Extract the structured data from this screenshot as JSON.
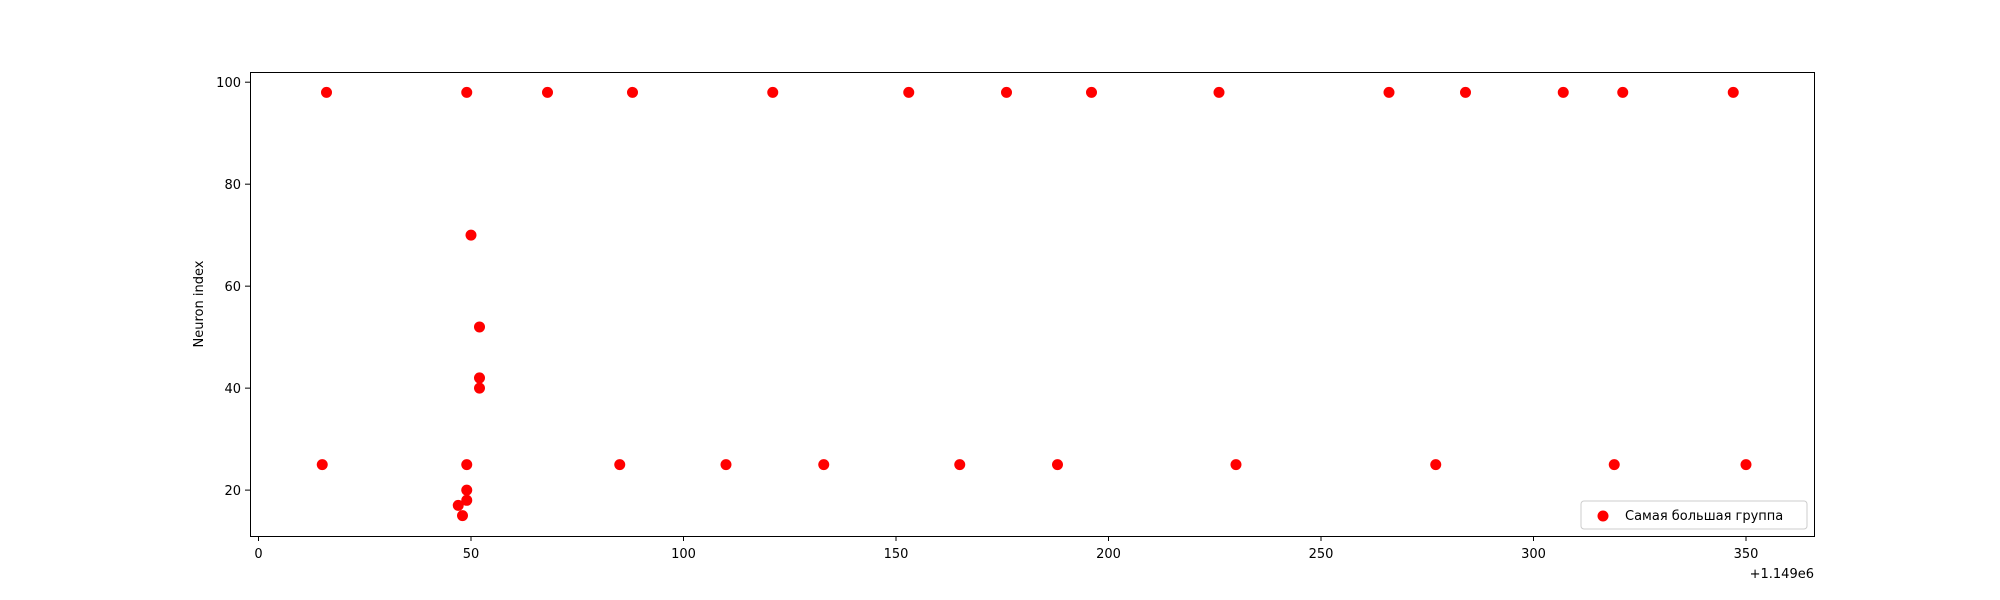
{
  "chart_data": {
    "type": "scatter",
    "title": "",
    "xlabel": "",
    "ylabel": "Neuron index",
    "x_offset_text": "+1.149e6",
    "xlim": [
      -2,
      366
    ],
    "ylim": [
      11,
      102
    ],
    "xticks": [
      0,
      50,
      100,
      150,
      200,
      250,
      300,
      350
    ],
    "yticks": [
      20,
      40,
      60,
      80,
      100
    ],
    "grid": false,
    "legend_position": "lower-right",
    "series": [
      {
        "name": "Самая большая группа",
        "color": "#ff0000",
        "x": [
          16,
          49,
          68,
          88,
          121,
          153,
          176,
          196,
          226,
          266,
          284,
          307,
          321,
          347,
          50,
          52,
          52,
          52,
          15,
          49,
          85,
          110,
          133,
          165,
          188,
          230,
          277,
          319,
          350,
          49,
          49,
          47,
          48
        ],
        "y": [
          98,
          98,
          98,
          98,
          98,
          98,
          98,
          98,
          98,
          98,
          98,
          98,
          98,
          98,
          70,
          52,
          42,
          40,
          25,
          25,
          25,
          25,
          25,
          25,
          25,
          25,
          25,
          25,
          25,
          20,
          18,
          17,
          15
        ]
      }
    ]
  }
}
